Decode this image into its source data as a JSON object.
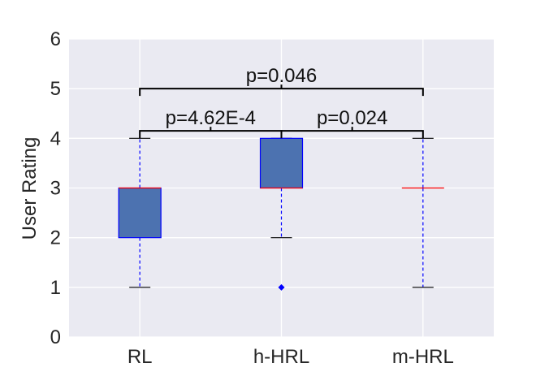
{
  "chart_data": {
    "type": "box",
    "title": "",
    "xlabel": "",
    "ylabel": "User Rating",
    "ylim": [
      0,
      6
    ],
    "yticks": [
      0,
      1,
      2,
      3,
      4,
      5,
      6
    ],
    "grid": true,
    "categories": [
      "RL",
      "h-HRL",
      "m-HRL"
    ],
    "boxes": [
      {
        "category": "RL",
        "whisker_low": 1,
        "q1": 2,
        "median": 3,
        "q3": 3,
        "whisker_high": 4,
        "outliers": []
      },
      {
        "category": "h-HRL",
        "whisker_low": 2,
        "q1": 3,
        "median": 3,
        "q3": 4,
        "whisker_high": 4,
        "outliers": [
          1
        ]
      },
      {
        "category": "m-HRL",
        "whisker_low": 1,
        "q1": 3,
        "median": 3,
        "q3": 3,
        "whisker_high": 4,
        "outliers": []
      }
    ],
    "significance": [
      {
        "from": 0,
        "to": 1,
        "y": 4.15,
        "label": "p=4.62E-4"
      },
      {
        "from": 1,
        "to": 2,
        "y": 4.15,
        "label": "p=0.024"
      },
      {
        "from": 0,
        "to": 2,
        "y": 5.0,
        "label": "p=0.046"
      }
    ],
    "colors": {
      "plot_background": "#EAEAF2",
      "grid": "#FFFFFF",
      "box_fill": "#4C72B0",
      "box_edge": "#0000FF",
      "median": "#FF0000",
      "whisker": "#0000FF",
      "cap": "#000000",
      "outlier": "#0000FF",
      "bracket": "#000000"
    }
  }
}
